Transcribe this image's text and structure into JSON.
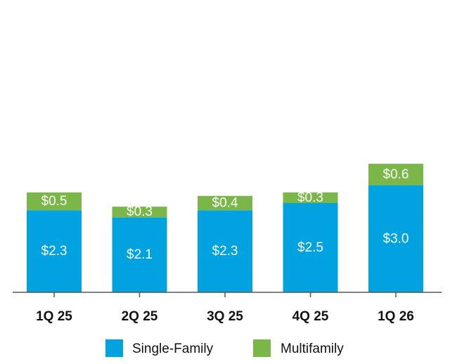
{
  "colors": {
    "single_family": "#00a3e0",
    "multifamily": "#7ab648",
    "axis": "#555555",
    "text": "#111111",
    "label": "#ffffff"
  },
  "chart_data": {
    "type": "bar",
    "stacked": true,
    "categories": [
      "1Q 25",
      "2Q 25",
      "3Q 25",
      "4Q 25",
      "1Q 26"
    ],
    "series": [
      {
        "name": "Single-Family",
        "values": [
          2.3,
          2.1,
          2.3,
          2.5,
          3.0
        ],
        "labels": [
          "$2.3",
          "$2.1",
          "$2.3",
          "$2.5",
          "$3.0"
        ]
      },
      {
        "name": "Multifamily",
        "values": [
          0.5,
          0.3,
          0.4,
          0.3,
          0.6
        ],
        "labels": [
          "$0.5",
          "$0.3",
          "$0.4",
          "$0.3",
          "$0.6"
        ]
      }
    ],
    "ylim": [
      0,
      5.0
    ],
    "grid": false,
    "legend": "bottom",
    "title": "",
    "xlabel": "",
    "ylabel": ""
  }
}
